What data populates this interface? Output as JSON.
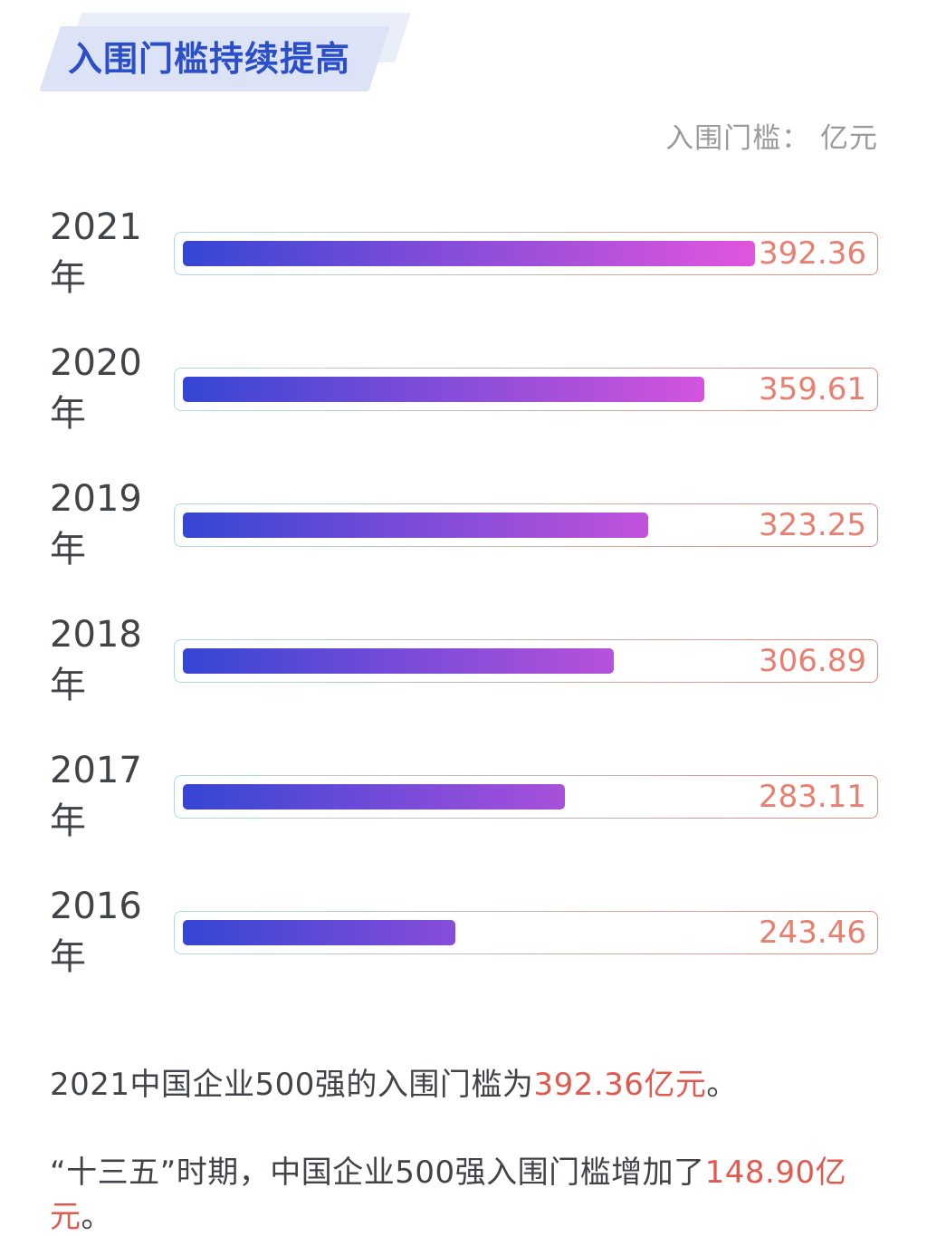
{
  "header": {
    "title": "入围门槛持续提高",
    "legend": "入围门槛： 亿元"
  },
  "chart_data": {
    "type": "bar",
    "orientation": "horizontal",
    "title": "入围门槛持续提高",
    "unit_label": "入围门槛： 亿元",
    "unit": "亿元",
    "categories": [
      "2021年",
      "2020年",
      "2019年",
      "2018年",
      "2017年",
      "2016年"
    ],
    "values": [
      392.36,
      359.61,
      323.25,
      306.89,
      283.11,
      243.46
    ],
    "value_labels": [
      "392.36",
      "359.61",
      "323.25",
      "306.89",
      "283.11",
      "243.46"
    ],
    "bar_fractions": [
      0.815,
      0.742,
      0.663,
      0.614,
      0.544,
      0.388
    ],
    "bar_gradient_start": "#3546d4",
    "bar_gradient_end": "#e255de",
    "track_border_start": "#a9dde7",
    "track_border_end": "#e08a7a",
    "value_color": "#e87f70",
    "legend_position": "top-right",
    "grid": false,
    "xlim": [
      0,
      400
    ]
  },
  "notes": [
    {
      "prefix": "2021中国企业500强的入围门槛为",
      "highlight": "392.36亿元",
      "suffix": "。"
    },
    {
      "prefix": "“十三五”时期，中国企业500强入围门槛增加了",
      "highlight": "148.90亿元",
      "suffix": "。"
    }
  ],
  "colors": {
    "title_text": "#2b4ec9",
    "title_bg_front": "#dce3f6",
    "title_bg_back": "#eaeef9",
    "year_label": "#404449",
    "legend_text": "#999a9e",
    "note_text": "#404449",
    "note_highlight": "#e05a4f"
  }
}
